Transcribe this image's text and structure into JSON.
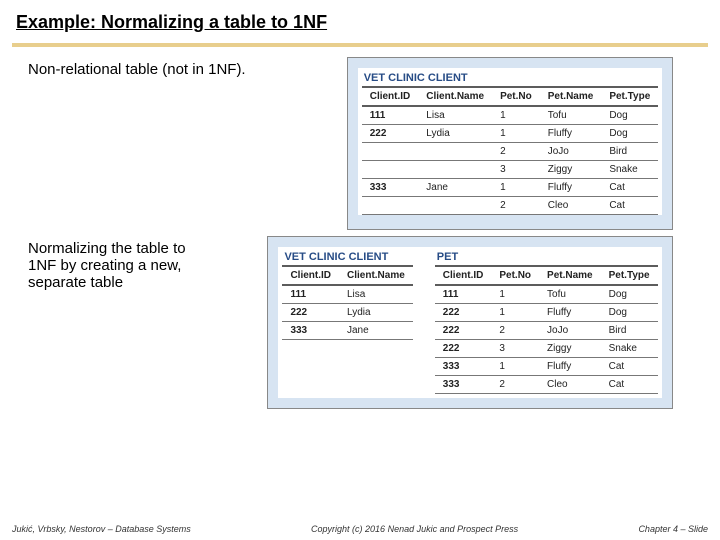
{
  "title": "Example: Normalizing a table to 1NF",
  "label_top": "Non-relational table (not in 1NF).",
  "label_bottom": "Normalizing the table to 1NF by creating a new, separate table",
  "colors": {
    "title_rule": "#e8ce8d",
    "figure_bg": "#d7e4f2",
    "table_title_color": "#274c86"
  },
  "table_top": {
    "title": "VET CLINIC CLIENT",
    "columns": [
      "Client.ID",
      "Client.Name",
      "Pet.No",
      "Pet.Name",
      "Pet.Type"
    ],
    "rows": [
      [
        "111",
        "Lisa",
        "1",
        "Tofu",
        "Dog"
      ],
      [
        "222",
        "Lydia",
        "1",
        "Fluffy",
        "Dog"
      ],
      [
        "",
        "",
        "2",
        "JoJo",
        "Bird"
      ],
      [
        "",
        "",
        "3",
        "Ziggy",
        "Snake"
      ],
      [
        "333",
        "Jane",
        "1",
        "Fluffy",
        "Cat"
      ],
      [
        "",
        "",
        "2",
        "Cleo",
        "Cat"
      ]
    ]
  },
  "table_client": {
    "title": "VET CLINIC CLIENT",
    "columns": [
      "Client.ID",
      "Client.Name"
    ],
    "rows": [
      [
        "111",
        "Lisa"
      ],
      [
        "222",
        "Lydia"
      ],
      [
        "333",
        "Jane"
      ]
    ]
  },
  "table_pet": {
    "title": "PET",
    "columns": [
      "Client.ID",
      "Pet.No",
      "Pet.Name",
      "Pet.Type"
    ],
    "rows": [
      [
        "111",
        "1",
        "Tofu",
        "Dog"
      ],
      [
        "222",
        "1",
        "Fluffy",
        "Dog"
      ],
      [
        "222",
        "2",
        "JoJo",
        "Bird"
      ],
      [
        "222",
        "3",
        "Ziggy",
        "Snake"
      ],
      [
        "333",
        "1",
        "Fluffy",
        "Cat"
      ],
      [
        "333",
        "2",
        "Cleo",
        "Cat"
      ]
    ]
  },
  "footer": {
    "left": "Jukić, Vrbsky, Nestorov – Database Systems",
    "center": "Copyright (c) 2016 Nenad Jukic and Prospect Press",
    "right": "Chapter 4 – Slide"
  }
}
